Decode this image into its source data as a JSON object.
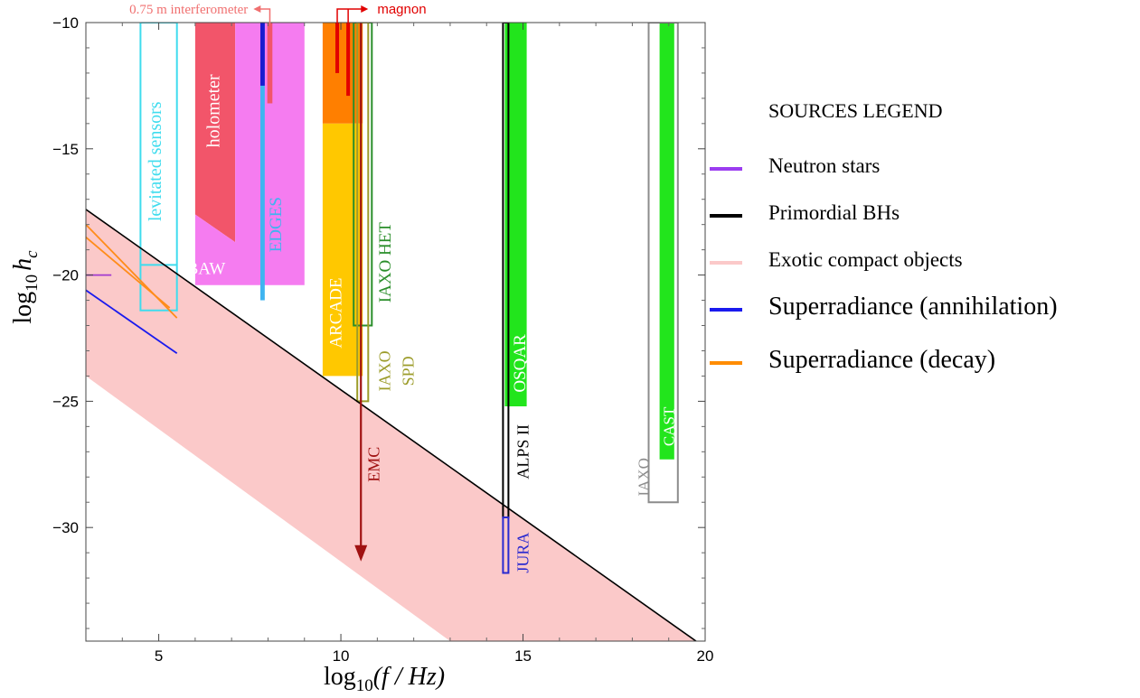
{
  "chart_data": {
    "type": "area",
    "xlabel_pre": "log",
    "xlabel_sub": "10",
    "xlabel_post": "(f / Hz)",
    "ylabel_pre": "log",
    "ylabel_sub": "10",
    "ylabel_var": "h",
    "ylabel_var_sub": "c",
    "xlim": [
      3,
      20
    ],
    "ylim": [
      -34.5,
      -10
    ],
    "xticks": [
      {
        "v": 5,
        "label": "5"
      },
      {
        "v": 10,
        "label": "10"
      },
      {
        "v": 15,
        "label": "15"
      },
      {
        "v": 20,
        "label": "20"
      }
    ],
    "yticks": [
      {
        "v": -10,
        "label": "−10"
      },
      {
        "v": -15,
        "label": "−15"
      },
      {
        "v": -20,
        "label": "−20"
      },
      {
        "v": -25,
        "label": "−25"
      },
      {
        "v": -30,
        "label": "−30"
      }
    ],
    "exotic_band": [
      [
        3,
        -17.4
      ],
      [
        19.75,
        -34.5
      ],
      [
        13.0,
        -34.5
      ],
      [
        3,
        -24.0
      ]
    ],
    "boundary_line": [
      [
        3,
        -17.4
      ],
      [
        19.75,
        -34.5
      ]
    ],
    "filled_regions": [
      {
        "name": "holometer",
        "color": "#f2556a",
        "points": [
          [
            6.0,
            -10
          ],
          [
            7.1,
            -10
          ],
          [
            7.1,
            -18.7
          ],
          [
            6.0,
            -17.6
          ]
        ]
      },
      {
        "name": "BAW",
        "color": "#f57cf0",
        "points": [
          [
            6.0,
            -17.6
          ],
          [
            7.1,
            -18.7
          ],
          [
            7.1,
            -10
          ],
          [
            9.0,
            -10
          ],
          [
            9.0,
            -20.4
          ],
          [
            6.0,
            -20.4
          ]
        ]
      },
      {
        "name": "ARCADE",
        "color": "#ffc800",
        "points": [
          [
            9.5,
            -14
          ],
          [
            10.6,
            -14
          ],
          [
            10.6,
            -24.0
          ],
          [
            9.5,
            -24.0
          ]
        ]
      },
      {
        "name": "ARCADE-top",
        "color": "#ff7f00",
        "points": [
          [
            9.5,
            -10
          ],
          [
            10.6,
            -10
          ],
          [
            10.6,
            -14
          ],
          [
            9.5,
            -14
          ]
        ]
      },
      {
        "name": "OSQAR",
        "color": "#22e51c",
        "points": [
          [
            14.5,
            -10
          ],
          [
            15.1,
            -10
          ],
          [
            15.1,
            -25.2
          ],
          [
            14.5,
            -25.2
          ]
        ]
      },
      {
        "name": "CAST",
        "color": "#22e51c",
        "points": [
          [
            18.75,
            -10
          ],
          [
            19.15,
            -10
          ],
          [
            19.15,
            -27.3
          ],
          [
            18.75,
            -27.3
          ]
        ]
      }
    ],
    "outline_regions": [
      {
        "name": "levitated sensors",
        "color": "#3fdcee",
        "points": [
          [
            4.5,
            -10
          ],
          [
            5.5,
            -10
          ],
          [
            5.5,
            -21.4
          ],
          [
            4.5,
            -21.4
          ]
        ]
      },
      {
        "name": "levitated sensors inner",
        "color": "#3fdcee",
        "points": [
          [
            4.5,
            -19.6
          ],
          [
            5.5,
            -19.6
          ]
        ]
      },
      {
        "name": "IAXO HET",
        "color": "#2a8e2a",
        "points": [
          [
            10.35,
            -10
          ],
          [
            10.85,
            -10
          ],
          [
            10.85,
            -22.0
          ],
          [
            10.35,
            -22.0
          ]
        ]
      },
      {
        "name": "IAXO SPD",
        "color": "#9c9c2a",
        "points": [
          [
            10.45,
            -10
          ],
          [
            10.75,
            -10
          ],
          [
            10.75,
            -25.0
          ],
          [
            10.45,
            -25.0
          ]
        ]
      },
      {
        "name": "ALPS II",
        "color": "#000000",
        "points": [
          [
            14.45,
            -10
          ],
          [
            14.6,
            -10
          ],
          [
            14.6,
            -29.6
          ],
          [
            14.45,
            -29.6
          ]
        ]
      },
      {
        "name": "JURA",
        "color": "#2a2ad0",
        "points": [
          [
            14.45,
            -29.6
          ],
          [
            14.6,
            -29.6
          ],
          [
            14.6,
            -31.8
          ],
          [
            14.45,
            -31.8
          ]
        ]
      },
      {
        "name": "IAXO",
        "color": "#8c8c8c",
        "points": [
          [
            18.45,
            -10
          ],
          [
            19.25,
            -10
          ],
          [
            19.25,
            -29.0
          ],
          [
            18.45,
            -29.0
          ]
        ]
      }
    ],
    "vertical_bars": [
      {
        "name": "EDGES",
        "color": "#3fb4f0",
        "x": 7.85,
        "y0": -10,
        "y1": -21.0,
        "width_units": 0.12
      },
      {
        "name": "EDGES-dark",
        "color": "#1a1ad0",
        "x": 7.85,
        "y0": -10,
        "y1": -12.5,
        "width_units": 0.12
      },
      {
        "name": "0.75 m interferometer",
        "color": "#f2556a",
        "x": 8.05,
        "y0": -10,
        "y1": -13.2,
        "width_units": 0.14
      },
      {
        "name": "magnon 1",
        "color": "#e10000",
        "x": 9.9,
        "y0": -10,
        "y1": -12.0,
        "width_units": 0.1
      },
      {
        "name": "magnon 2",
        "color": "#e10000",
        "x": 10.2,
        "y0": -10,
        "y1": -12.9,
        "width_units": 0.1
      }
    ],
    "source_lines": [
      {
        "name": "Neutron stars",
        "color": "#a23ad0",
        "points": [
          [
            3.0,
            -20.0
          ],
          [
            3.7,
            -20.0
          ]
        ]
      },
      {
        "name": "Superradiance (annihilation)",
        "color": "#1a1aee",
        "points": [
          [
            3.0,
            -20.6
          ],
          [
            5.5,
            -23.1
          ]
        ]
      },
      {
        "name": "Superradiance (decay)",
        "color": "#ff8c1a",
        "points": [
          [
            3.0,
            -18.0
          ],
          [
            5.5,
            -21.7
          ]
        ]
      },
      {
        "name": "Superradiance (decay) 2",
        "color": "#ff8c1a",
        "points": [
          [
            3.0,
            -18.5
          ],
          [
            5.3,
            -21.3
          ]
        ]
      }
    ],
    "emc_arrow": {
      "color": "#a01212",
      "x": 10.55,
      "y0": -10,
      "y1": -31.2
    },
    "labels": [
      {
        "text": "holometer",
        "color": "#ffffff",
        "x": 6.55,
        "y": -13.5,
        "rotate": -90,
        "size": 20
      },
      {
        "text": "BAW",
        "color": "#ffffff",
        "x": 6.3,
        "y": -19.8,
        "rotate": 0,
        "size": 19
      },
      {
        "text": "levitated sensors",
        "color": "#3fdcee",
        "x": 4.95,
        "y": -15.5,
        "rotate": -90,
        "size": 20
      },
      {
        "text": "EDGES",
        "color": "#3fb4f0",
        "x": 8.25,
        "y": -18.0,
        "rotate": -90,
        "size": 19
      },
      {
        "text": "ARCADE",
        "color": "#ffffff",
        "x": 9.9,
        "y": -21.5,
        "rotate": -90,
        "size": 19
      },
      {
        "text": "IAXO HET",
        "color": "#2a8e2a",
        "x": 11.25,
        "y": -19.5,
        "rotate": -90,
        "size": 19
      },
      {
        "text": "IAXO",
        "color": "#9c9c2a",
        "x": 11.25,
        "y": -23.8,
        "rotate": -90,
        "size": 18
      },
      {
        "text": "SPD",
        "color": "#9c9c2a",
        "x": 11.9,
        "y": -23.8,
        "rotate": -90,
        "size": 18
      },
      {
        "text": "EMC",
        "color": "#a01212",
        "x": 10.95,
        "y": -27.5,
        "rotate": -90,
        "size": 18
      },
      {
        "text": "OSQAR",
        "color": "#ffffff",
        "x": 14.95,
        "y": -23.5,
        "rotate": -90,
        "size": 19
      },
      {
        "text": "ALPS II",
        "color": "#000000",
        "x": 15.05,
        "y": -27.0,
        "rotate": -90,
        "size": 18
      },
      {
        "text": "JURA",
        "color": "#2a2ad0",
        "x": 15.05,
        "y": -31.0,
        "rotate": -90,
        "size": 18
      },
      {
        "text": "IAXO",
        "color": "#8c8c8c",
        "x": 18.35,
        "y": -28.0,
        "rotate": -90,
        "size": 17
      },
      {
        "text": "CAST",
        "color": "#ffffff",
        "x": 19.05,
        "y": -26.0,
        "rotate": -90,
        "size": 17
      }
    ],
    "top_annotations": [
      {
        "text": "0.75 m interferometer",
        "color": "#f07070",
        "x_text_end": 7.45,
        "arrow_from": 8.05,
        "arrow_to": 7.6,
        "dir": "left"
      },
      {
        "text": "magnon",
        "color": "#e10000",
        "x_text_start": 11.0,
        "arrow_from": 9.9,
        "arrow_to": 10.75,
        "dir": "right"
      }
    ]
  },
  "legend": {
    "title": "SOURCES LEGEND",
    "items": [
      {
        "label": "Neutron stars",
        "color": "#9b3df0",
        "size": 23
      },
      {
        "label": "Primordial BHs",
        "color": "#000000",
        "size": 23
      },
      {
        "label": "Exotic compact objects",
        "color": "#fbc9c9",
        "size": 23
      },
      {
        "label": "Superradiance (annihilation)",
        "color": "#1a1aee",
        "size": 28
      },
      {
        "label": "Superradiance (decay)",
        "color": "#ff8c00",
        "size": 28
      }
    ]
  }
}
